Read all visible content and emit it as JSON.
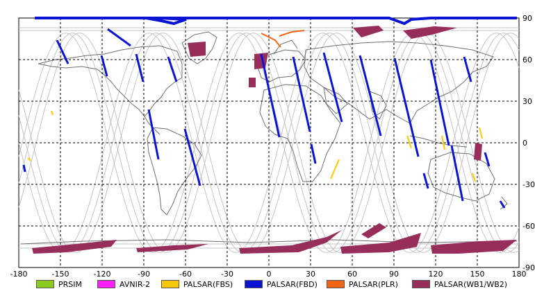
{
  "map": {
    "lon_ticks": [
      "-180",
      "-150",
      "-120",
      "-90",
      "-60",
      "-30",
      "0",
      "30",
      "60",
      "90",
      "120",
      "150",
      "180"
    ],
    "lat_ticks": [
      "90",
      "60",
      "30",
      "0",
      "-30",
      "-60",
      "-90"
    ],
    "lon_range": [
      -180,
      180
    ],
    "lat_range": [
      -90,
      90
    ],
    "grid": "dashed",
    "colors": {
      "coast": "#6e6e6e",
      "orbit": "#c4c4c4",
      "prism": "#8ccc1e",
      "avnir2": "#ff22ff",
      "palsar_fbs": "#ffc800",
      "palsar_fbd": "#0a14d2",
      "palsar_plr": "#f06414",
      "palsar_wb": "#962d5a"
    }
  },
  "legend": [
    {
      "label": "PRSIM",
      "color": "#8ccc1e"
    },
    {
      "label": "AVNIR-2",
      "color": "#ff22ff"
    },
    {
      "label": "PALSAR(FBS)",
      "color": "#ffc800"
    },
    {
      "label": "PALSAR(FBD)",
      "color": "#0a14d2"
    },
    {
      "label": "PALSAR(PLR)",
      "color": "#f06414"
    },
    {
      "label": "PALSAR(WB1/WB2)",
      "color": "#962d5a"
    }
  ]
}
